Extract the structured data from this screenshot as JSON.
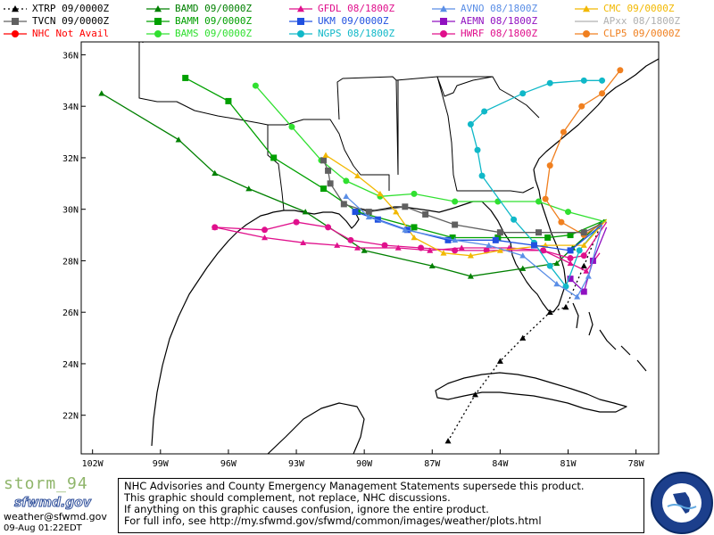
{
  "legend": [
    {
      "id": "xtrp",
      "model": "XTRP",
      "time": "09/0000Z",
      "color": "#000000",
      "marker": "triangle",
      "dashed": true
    },
    {
      "id": "bamd",
      "model": "BAMD",
      "time": "09/0000Z",
      "color": "#008000",
      "marker": "triangle"
    },
    {
      "id": "gfdl",
      "model": "GFDL",
      "time": "08/1800Z",
      "color": "#e0108c",
      "marker": "triangle"
    },
    {
      "id": "avno",
      "model": "AVNO",
      "time": "08/1800Z",
      "color": "#5a8ee6",
      "marker": "triangle"
    },
    {
      "id": "cmc",
      "model": "CMC",
      "time": "09/0000Z",
      "color": "#f2b800",
      "marker": "triangle"
    },
    {
      "id": "tvcn",
      "model": "TVCN",
      "time": "09/0000Z",
      "color": "#606060",
      "marker": "square"
    },
    {
      "id": "bamm",
      "model": "BAMM",
      "time": "09/0000Z",
      "color": "#00a000",
      "marker": "square"
    },
    {
      "id": "ukm",
      "model": "UKM",
      "time": "09/0000Z",
      "color": "#2050e0",
      "marker": "square"
    },
    {
      "id": "aemn",
      "model": "AEMN",
      "time": "08/1800Z",
      "color": "#9010c0",
      "marker": "square"
    },
    {
      "id": "apxx",
      "model": "APxx",
      "time": "08/1800Z",
      "color": "#b0b0b0",
      "marker": "line"
    },
    {
      "id": "nhc",
      "model": "NHC",
      "time": "Not Avail",
      "color": "#ff0000",
      "marker": "circle"
    },
    {
      "id": "bams",
      "model": "BAMS",
      "time": "09/0000Z",
      "color": "#30e030",
      "marker": "circle"
    },
    {
      "id": "ngps",
      "model": "NGPS",
      "time": "08/1800Z",
      "color": "#10b8c8",
      "marker": "circle"
    },
    {
      "id": "hwrf",
      "model": "HWRF",
      "time": "08/1800Z",
      "color": "#e0108c",
      "marker": "circle"
    },
    {
      "id": "clp5",
      "model": "CLP5",
      "time": "09/0000Z",
      "color": "#f08020",
      "marker": "circle"
    }
  ],
  "map": {
    "lon_range": [
      -102.5,
      -77
    ],
    "lat_range": [
      20.5,
      36.5
    ],
    "lon_labels": [
      "102W",
      "99W",
      "96W",
      "93W",
      "90W",
      "87W",
      "84W",
      "81W",
      "78W"
    ],
    "lat_labels": [
      "22N",
      "24N",
      "26N",
      "28N",
      "30N",
      "32N",
      "34N",
      "36N"
    ],
    "tracks": [
      {
        "model": "XTRP",
        "color": "#000000",
        "marker": "triangle",
        "dashed": true,
        "points": [
          [
            -79.6,
            29.3
          ],
          [
            -80.3,
            27.8
          ],
          [
            -81.1,
            26.2
          ],
          [
            -81.8,
            26.0
          ],
          [
            -83.0,
            25.0
          ],
          [
            -84.0,
            24.1
          ],
          [
            -85.1,
            22.8
          ],
          [
            -86.3,
            21.0
          ]
        ]
      },
      {
        "model": "BAMD",
        "color": "#008000",
        "marker": "triangle",
        "points": [
          [
            -79.4,
            29.6
          ],
          [
            -80.8,
            28.5
          ],
          [
            -81.5,
            27.9
          ],
          [
            -83.0,
            27.7
          ],
          [
            -85.3,
            27.4
          ],
          [
            -87.0,
            27.8
          ],
          [
            -90.0,
            28.4
          ],
          [
            -92.6,
            29.9
          ],
          [
            -95.1,
            30.8
          ],
          [
            -96.6,
            31.4
          ],
          [
            -98.2,
            32.7
          ],
          [
            -101.6,
            34.5
          ]
        ]
      },
      {
        "model": "BAMM",
        "color": "#00a000",
        "marker": "square",
        "points": [
          [
            -79.3,
            29.6
          ],
          [
            -80.9,
            29.0
          ],
          [
            -81.9,
            28.9
          ],
          [
            -84.1,
            28.9
          ],
          [
            -86.1,
            28.9
          ],
          [
            -87.8,
            29.3
          ],
          [
            -90.3,
            29.9
          ],
          [
            -91.8,
            30.8
          ],
          [
            -94.0,
            32.0
          ],
          [
            -96.0,
            34.2
          ],
          [
            -97.9,
            35.1
          ]
        ]
      },
      {
        "model": "BAMS",
        "color": "#30e030",
        "marker": "circle",
        "points": [
          [
            -79.3,
            29.5
          ],
          [
            -81.0,
            29.9
          ],
          [
            -82.3,
            30.3
          ],
          [
            -84.1,
            30.3
          ],
          [
            -86.0,
            30.3
          ],
          [
            -87.8,
            30.6
          ],
          [
            -89.3,
            30.5
          ],
          [
            -90.8,
            31.1
          ],
          [
            -91.9,
            31.9
          ],
          [
            -93.2,
            33.2
          ],
          [
            -94.8,
            34.8
          ]
        ]
      },
      {
        "model": "GFDL",
        "color": "#e0108c",
        "marker": "triangle",
        "points": [
          [
            -79.6,
            28.3
          ],
          [
            -80.2,
            27.6
          ],
          [
            -80.9,
            27.9
          ],
          [
            -82.1,
            28.4
          ],
          [
            -83.6,
            28.5
          ],
          [
            -85.7,
            28.5
          ],
          [
            -87.1,
            28.4
          ],
          [
            -88.5,
            28.5
          ],
          [
            -90.3,
            28.5
          ],
          [
            -91.2,
            28.6
          ],
          [
            -92.7,
            28.7
          ],
          [
            -94.4,
            28.9
          ],
          [
            -96.6,
            29.3
          ]
        ]
      },
      {
        "model": "HWRF",
        "color": "#e0108c",
        "marker": "circle",
        "points": [
          [
            -79.3,
            29.5
          ],
          [
            -80.3,
            28.2
          ],
          [
            -80.9,
            28.1
          ],
          [
            -82.1,
            28.4
          ],
          [
            -84.6,
            28.4
          ],
          [
            -86.0,
            28.4
          ],
          [
            -87.5,
            28.5
          ],
          [
            -89.1,
            28.6
          ],
          [
            -90.6,
            28.8
          ],
          [
            -91.6,
            29.3
          ],
          [
            -93.0,
            29.5
          ],
          [
            -94.4,
            29.2
          ],
          [
            -96.6,
            29.3
          ]
        ]
      },
      {
        "model": "AEMN",
        "color": "#9010c0",
        "marker": "square",
        "points": [
          [
            -79.3,
            29.3
          ],
          [
            -79.9,
            28.0
          ],
          [
            -80.3,
            26.8
          ],
          [
            -80.9,
            27.3
          ]
        ]
      },
      {
        "model": "NGPS",
        "color": "#10b8c8",
        "marker": "circle",
        "points": [
          [
            -79.5,
            29.5
          ],
          [
            -80.5,
            28.4
          ],
          [
            -81.1,
            27.0
          ],
          [
            -81.8,
            27.8
          ],
          [
            -82.5,
            28.7
          ],
          [
            -83.4,
            29.6
          ],
          [
            -84.8,
            31.3
          ],
          [
            -85.0,
            32.3
          ],
          [
            -85.3,
            33.3
          ],
          [
            -84.7,
            33.8
          ],
          [
            -83.0,
            34.5
          ],
          [
            -81.8,
            34.9
          ],
          [
            -80.3,
            35.0
          ],
          [
            -79.5,
            35.0
          ]
        ]
      },
      {
        "model": "CLP5",
        "color": "#f08020",
        "marker": "circle",
        "points": [
          [
            -79.4,
            29.5
          ],
          [
            -80.3,
            29.0
          ],
          [
            -81.3,
            29.5
          ],
          [
            -82.0,
            30.4
          ],
          [
            -81.8,
            31.7
          ],
          [
            -81.2,
            33.0
          ],
          [
            -80.4,
            34.0
          ],
          [
            -79.5,
            34.5
          ],
          [
            -78.7,
            35.4
          ]
        ]
      },
      {
        "model": "TVCN",
        "color": "#606060",
        "marker": "square",
        "points": [
          [
            -79.4,
            29.5
          ],
          [
            -80.3,
            29.1
          ],
          [
            -82.3,
            29.1
          ],
          [
            -84.0,
            29.1
          ],
          [
            -86.0,
            29.4
          ],
          [
            -87.3,
            29.8
          ],
          [
            -88.2,
            30.1
          ],
          [
            -89.8,
            29.9
          ],
          [
            -90.9,
            30.2
          ],
          [
            -91.5,
            31.0
          ],
          [
            -91.6,
            31.5
          ],
          [
            -91.8,
            31.9
          ]
        ]
      },
      {
        "model": "CMC",
        "color": "#f2b800",
        "marker": "triangle",
        "points": [
          [
            -79.3,
            29.6
          ],
          [
            -80.3,
            28.6
          ],
          [
            -82.0,
            28.6
          ],
          [
            -84.0,
            28.4
          ],
          [
            -85.3,
            28.2
          ],
          [
            -86.5,
            28.3
          ],
          [
            -87.8,
            28.9
          ],
          [
            -88.6,
            29.9
          ],
          [
            -89.3,
            30.6
          ],
          [
            -90.3,
            31.3
          ],
          [
            -91.7,
            32.1
          ]
        ]
      },
      {
        "model": "UKM",
        "color": "#2050e0",
        "marker": "square",
        "points": [
          [
            -79.5,
            29.4
          ],
          [
            -80.9,
            28.4
          ],
          [
            -82.5,
            28.6
          ],
          [
            -84.2,
            28.8
          ],
          [
            -86.3,
            28.8
          ],
          [
            -88.1,
            29.2
          ],
          [
            -89.4,
            29.6
          ],
          [
            -90.4,
            29.9
          ]
        ]
      },
      {
        "model": "AVNO",
        "color": "#5a8ee6",
        "marker": "triangle",
        "points": [
          [
            -79.5,
            29.4
          ],
          [
            -80.1,
            27.4
          ],
          [
            -80.6,
            26.6
          ],
          [
            -81.5,
            27.1
          ],
          [
            -83.0,
            28.2
          ],
          [
            -84.5,
            28.6
          ],
          [
            -86.0,
            28.8
          ],
          [
            -88.2,
            29.2
          ],
          [
            -89.8,
            29.7
          ],
          [
            -90.8,
            30.5
          ]
        ]
      }
    ]
  },
  "footer": {
    "storm_name": "storm_94",
    "brand": "sfwmd.gov",
    "email": "weather@sfwmd.gov",
    "timestamp": "09-Aug 01:22EDT",
    "disclaimer": [
      "NHC Advisories and County Emergency Management Statements supersede this product.",
      "This graphic should complement, not replace, NHC discussions.",
      "If anything on this graphic causes confusion, ignore the entire product.",
      "For full info, see  http://my.sfwmd.gov/sfwmd/common/images/weather/plots.html"
    ],
    "seal_text": "SOUTH FLORIDA WATER MANAGEMENT DISTRICT"
  }
}
